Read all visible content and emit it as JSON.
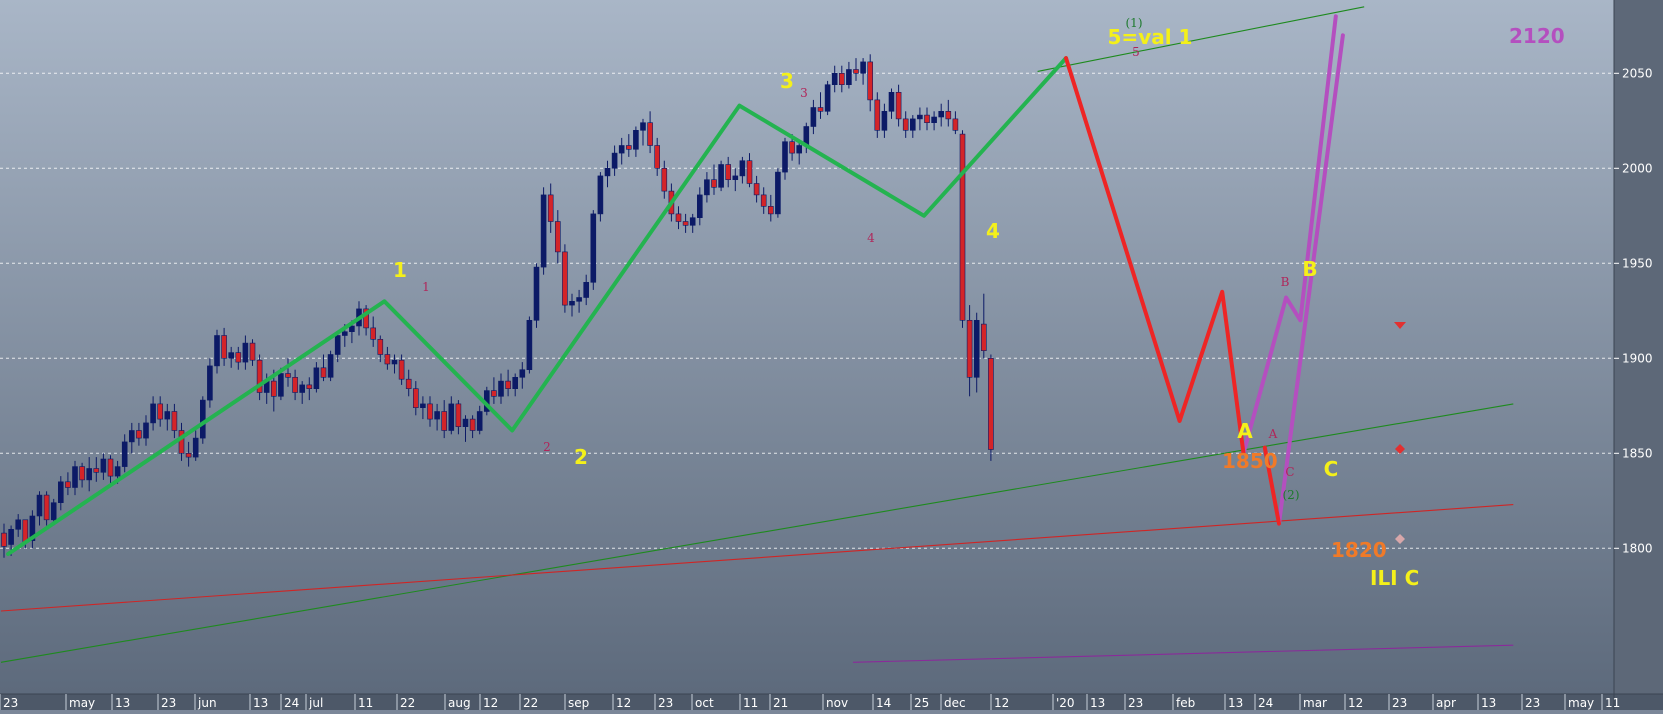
{
  "chart_data": {
    "type": "candlestick",
    "y_axis": {
      "ticks": [
        1800,
        1850,
        1900,
        1950,
        2000,
        2050
      ],
      "range": [
        1740,
        2085
      ],
      "side": "right",
      "grid": "dashed"
    },
    "x_axis": {
      "ticks": [
        "23",
        "may",
        "13",
        "23",
        "jun",
        "13",
        "24",
        "jul",
        "11",
        "22",
        "aug",
        "12",
        "22",
        "sep",
        "12",
        "23",
        "oct",
        "11",
        "21",
        "nov",
        "14",
        "25",
        "dec",
        "12",
        "'20",
        "13",
        "23",
        "feb",
        "13",
        "24",
        "mar",
        "12",
        "23",
        "apr",
        "13",
        "23",
        "may",
        "11"
      ]
    },
    "candles": [
      [
        1808,
        1813,
        1795,
        1801
      ],
      [
        1802,
        1812,
        1796,
        1810
      ],
      [
        1810,
        1818,
        1806,
        1815
      ],
      [
        1815,
        1815,
        1800,
        1803
      ],
      [
        1804,
        1820,
        1800,
        1817
      ],
      [
        1817,
        1830,
        1812,
        1828
      ],
      [
        1828,
        1830,
        1812,
        1815
      ],
      [
        1815,
        1826,
        1812,
        1824
      ],
      [
        1824,
        1838,
        1820,
        1835
      ],
      [
        1835,
        1840,
        1828,
        1832
      ],
      [
        1832,
        1846,
        1828,
        1843
      ],
      [
        1843,
        1845,
        1832,
        1836
      ],
      [
        1836,
        1848,
        1830,
        1842
      ],
      [
        1842,
        1848,
        1835,
        1840
      ],
      [
        1840,
        1850,
        1836,
        1847
      ],
      [
        1847,
        1849,
        1834,
        1838
      ],
      [
        1838,
        1846,
        1834,
        1843
      ],
      [
        1843,
        1860,
        1840,
        1856
      ],
      [
        1856,
        1866,
        1850,
        1862
      ],
      [
        1862,
        1866,
        1854,
        1858
      ],
      [
        1858,
        1870,
        1854,
        1866
      ],
      [
        1866,
        1880,
        1862,
        1876
      ],
      [
        1876,
        1880,
        1864,
        1868
      ],
      [
        1868,
        1876,
        1862,
        1872
      ],
      [
        1872,
        1876,
        1858,
        1862
      ],
      [
        1862,
        1866,
        1846,
        1850
      ],
      [
        1850,
        1856,
        1843,
        1848
      ],
      [
        1848,
        1862,
        1846,
        1858
      ],
      [
        1858,
        1880,
        1855,
        1878
      ],
      [
        1878,
        1900,
        1874,
        1896
      ],
      [
        1896,
        1915,
        1892,
        1912
      ],
      [
        1912,
        1916,
        1896,
        1900
      ],
      [
        1900,
        1906,
        1895,
        1903
      ],
      [
        1903,
        1906,
        1894,
        1898
      ],
      [
        1898,
        1912,
        1894,
        1908
      ],
      [
        1908,
        1910,
        1896,
        1899
      ],
      [
        1899,
        1902,
        1878,
        1882
      ],
      [
        1882,
        1892,
        1876,
        1888
      ],
      [
        1888,
        1894,
        1872,
        1880
      ],
      [
        1880,
        1895,
        1878,
        1892
      ],
      [
        1892,
        1900,
        1885,
        1890
      ],
      [
        1890,
        1894,
        1878,
        1882
      ],
      [
        1882,
        1888,
        1876,
        1886
      ],
      [
        1886,
        1890,
        1878,
        1884
      ],
      [
        1884,
        1898,
        1882,
        1895
      ],
      [
        1895,
        1902,
        1888,
        1890
      ],
      [
        1890,
        1904,
        1888,
        1902
      ],
      [
        1902,
        1914,
        1898,
        1912
      ],
      [
        1912,
        1918,
        1906,
        1914
      ],
      [
        1914,
        1920,
        1908,
        1917
      ],
      [
        1917,
        1930,
        1912,
        1926
      ],
      [
        1926,
        1928,
        1912,
        1916
      ],
      [
        1916,
        1922,
        1906,
        1910
      ],
      [
        1910,
        1912,
        1898,
        1902
      ],
      [
        1902,
        1906,
        1894,
        1897
      ],
      [
        1897,
        1902,
        1892,
        1899
      ],
      [
        1899,
        1902,
        1886,
        1889
      ],
      [
        1889,
        1894,
        1880,
        1884
      ],
      [
        1884,
        1888,
        1870,
        1874
      ],
      [
        1874,
        1880,
        1868,
        1876
      ],
      [
        1876,
        1880,
        1864,
        1868
      ],
      [
        1868,
        1876,
        1862,
        1872
      ],
      [
        1872,
        1878,
        1858,
        1862
      ],
      [
        1862,
        1880,
        1860,
        1876
      ],
      [
        1876,
        1878,
        1860,
        1864
      ],
      [
        1864,
        1870,
        1856,
        1868
      ],
      [
        1868,
        1870,
        1858,
        1862
      ],
      [
        1862,
        1875,
        1860,
        1872
      ],
      [
        1872,
        1885,
        1870,
        1883
      ],
      [
        1883,
        1890,
        1876,
        1880
      ],
      [
        1880,
        1892,
        1876,
        1888
      ],
      [
        1888,
        1894,
        1880,
        1884
      ],
      [
        1884,
        1892,
        1880,
        1890
      ],
      [
        1890,
        1898,
        1884,
        1894
      ],
      [
        1894,
        1922,
        1892,
        1920
      ],
      [
        1920,
        1950,
        1916,
        1948
      ],
      [
        1948,
        1990,
        1944,
        1986
      ],
      [
        1986,
        1992,
        1966,
        1972
      ],
      [
        1972,
        1978,
        1950,
        1956
      ],
      [
        1956,
        1960,
        1924,
        1928
      ],
      [
        1928,
        1934,
        1922,
        1930
      ],
      [
        1930,
        1936,
        1924,
        1932
      ],
      [
        1932,
        1944,
        1928,
        1940
      ],
      [
        1940,
        1978,
        1936,
        1976
      ],
      [
        1976,
        1998,
        1972,
        1996
      ],
      [
        1996,
        2004,
        1990,
        2000
      ],
      [
        2000,
        2012,
        1996,
        2008
      ],
      [
        2008,
        2016,
        2002,
        2012
      ],
      [
        2012,
        2018,
        2006,
        2010
      ],
      [
        2010,
        2022,
        2006,
        2020
      ],
      [
        2020,
        2026,
        2012,
        2024
      ],
      [
        2024,
        2030,
        2008,
        2012
      ],
      [
        2012,
        2016,
        1996,
        2000
      ],
      [
        2000,
        2004,
        1984,
        1988
      ],
      [
        1988,
        1992,
        1972,
        1976
      ],
      [
        1976,
        1980,
        1968,
        1972
      ],
      [
        1972,
        1976,
        1966,
        1970
      ],
      [
        1970,
        1976,
        1966,
        1974
      ],
      [
        1974,
        1990,
        1970,
        1986
      ],
      [
        1986,
        1998,
        1982,
        1994
      ],
      [
        1994,
        2002,
        1986,
        1990
      ],
      [
        1990,
        2004,
        1988,
        2002
      ],
      [
        2002,
        2006,
        1990,
        1994
      ],
      [
        1994,
        2000,
        1988,
        1996
      ],
      [
        1996,
        2006,
        1992,
        2004
      ],
      [
        2004,
        2008,
        1990,
        1992
      ],
      [
        1992,
        1996,
        1982,
        1986
      ],
      [
        1986,
        1990,
        1976,
        1980
      ],
      [
        1980,
        1986,
        1972,
        1976
      ],
      [
        1976,
        2000,
        1974,
        1998
      ],
      [
        1998,
        2016,
        1994,
        2014
      ],
      [
        2014,
        2018,
        2004,
        2008
      ],
      [
        2008,
        2014,
        2002,
        2012
      ],
      [
        2012,
        2024,
        2008,
        2022
      ],
      [
        2022,
        2036,
        2018,
        2032
      ],
      [
        2032,
        2040,
        2026,
        2030
      ],
      [
        2030,
        2046,
        2028,
        2044
      ],
      [
        2044,
        2054,
        2040,
        2050
      ],
      [
        2050,
        2054,
        2040,
        2044
      ],
      [
        2044,
        2056,
        2042,
        2052
      ],
      [
        2052,
        2058,
        2046,
        2050
      ],
      [
        2050,
        2058,
        2044,
        2056
      ],
      [
        2056,
        2060,
        2030,
        2036
      ],
      [
        2036,
        2040,
        2016,
        2020
      ],
      [
        2020,
        2034,
        2016,
        2030
      ],
      [
        2030,
        2042,
        2026,
        2040
      ],
      [
        2040,
        2044,
        2022,
        2026
      ],
      [
        2026,
        2030,
        2016,
        2020
      ],
      [
        2020,
        2028,
        2016,
        2026
      ],
      [
        2026,
        2032,
        2020,
        2028
      ],
      [
        2028,
        2032,
        2020,
        2024
      ],
      [
        2024,
        2030,
        2020,
        2027
      ],
      [
        2027,
        2034,
        2022,
        2030
      ],
      [
        2030,
        2036,
        2022,
        2026
      ],
      [
        2026,
        2030,
        2018,
        2020
      ],
      [
        2018,
        2020,
        1916,
        1920
      ],
      [
        1920,
        1928,
        1880,
        1890
      ],
      [
        1890,
        1924,
        1882,
        1920
      ],
      [
        1918,
        1934,
        1900,
        1904
      ],
      [
        1900,
        1902,
        1846,
        1852
      ]
    ],
    "colors": {
      "up": "#0c1a66",
      "down": "#d42428",
      "wick": "#0c1a66",
      "wave": "#24b350",
      "forecast": "#ee2525",
      "projection": "#b44fbf"
    },
    "labels": {
      "wave_big": [
        "1",
        "2",
        "3",
        "4",
        "5=val 1",
        "A",
        "B",
        "C"
      ],
      "wave_small": [
        "1",
        "2",
        "3",
        "4",
        "5",
        "(1)",
        "A",
        "B",
        "C",
        "(2)"
      ],
      "price_notes": [
        "1850",
        "1820",
        "2120"
      ],
      "scenario": "ILI C"
    },
    "wave_path": [
      [
        1,
        1797
      ],
      [
        54,
        1930
      ],
      [
        72,
        1862
      ],
      [
        104,
        2033
      ],
      [
        130,
        1975
      ],
      [
        150,
        2058
      ]
    ],
    "forecast_path": [
      [
        150,
        2058
      ],
      [
        166,
        1867
      ],
      [
        172,
        1935
      ],
      [
        175,
        1850
      ]
    ],
    "forecast_path_2": [
      [
        178,
        1853
      ],
      [
        180,
        1813
      ]
    ],
    "projection_paths": [
      [
        [
          175,
          1850
        ],
        [
          181,
          1932
        ],
        [
          183,
          1920
        ],
        [
          188,
          2080
        ]
      ],
      [
        [
          180,
          1813
        ],
        [
          189,
          2070
        ]
      ]
    ],
    "trendlines": [
      {
        "color": "#1e8a1e",
        "from": [
          0,
          1740
        ],
        "to": [
          213,
          1876
        ]
      },
      {
        "color": "#cf2525",
        "from": [
          0,
          1767
        ],
        "to": [
          213,
          1823
        ]
      },
      {
        "color": "#1e8a1e",
        "from": [
          146,
          2051
        ],
        "to": [
          192,
          2085
        ]
      },
      {
        "color": "#8a2a9a",
        "from": [
          120,
          1740
        ],
        "to": [
          213,
          1749
        ]
      }
    ]
  }
}
